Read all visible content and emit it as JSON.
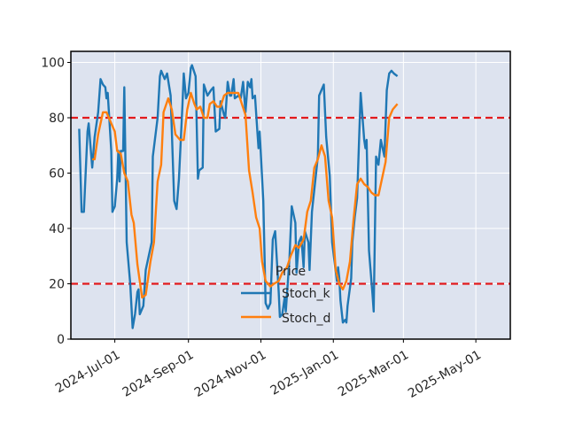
{
  "chart_data": {
    "type": "line",
    "legend": {
      "title": "Price",
      "placement": "lower-center"
    },
    "xlabel": "",
    "ylabel": "",
    "ylim": [
      0,
      104
    ],
    "xlim": [
      "2024-05-25",
      "2025-05-30"
    ],
    "grid": true,
    "background_color": "#dde3ef",
    "xticks": [
      "2024-07-01",
      "2024-09-01",
      "2024-11-01",
      "2025-01-01",
      "2025-03-01",
      "2025-05-01"
    ],
    "xtick_labels": [
      "2024-Jul-01",
      "2024-Sep-01",
      "2024-Nov-01",
      "2025-Jan-01",
      "2025-Mar-01",
      "2025-May-01"
    ],
    "yticks": [
      0,
      20,
      40,
      60,
      80,
      100
    ],
    "ytick_labels": [
      "0",
      "20",
      "40",
      "60",
      "80",
      "100"
    ],
    "reference_lines": [
      {
        "y": 80,
        "color": "#e31a1c",
        "style": "dashed"
      },
      {
        "y": 20,
        "color": "#e31a1c",
        "style": "dashed"
      }
    ],
    "series": [
      {
        "name": "Stoch_k",
        "color": "#1f77b4",
        "points": [
          [
            "2024-06-01",
            76
          ],
          [
            "2024-06-03",
            46
          ],
          [
            "2024-06-05",
            46
          ],
          [
            "2024-06-08",
            75
          ],
          [
            "2024-06-09",
            78
          ],
          [
            "2024-06-12",
            62
          ],
          [
            "2024-06-14",
            73
          ],
          [
            "2024-06-17",
            82
          ],
          [
            "2024-06-19",
            94
          ],
          [
            "2024-06-21",
            92
          ],
          [
            "2024-06-23",
            91
          ],
          [
            "2024-06-24",
            87
          ],
          [
            "2024-06-25",
            89
          ],
          [
            "2024-06-28",
            68
          ],
          [
            "2024-06-29",
            46
          ],
          [
            "2024-07-01",
            48
          ],
          [
            "2024-07-03",
            58
          ],
          [
            "2024-07-04",
            68
          ],
          [
            "2024-07-05",
            57
          ],
          [
            "2024-07-06",
            68
          ],
          [
            "2024-07-08",
            68
          ],
          [
            "2024-07-09",
            91
          ],
          [
            "2024-07-11",
            35
          ],
          [
            "2024-07-14",
            20
          ],
          [
            "2024-07-16",
            4
          ],
          [
            "2024-07-18",
            9
          ],
          [
            "2024-07-20",
            17
          ],
          [
            "2024-07-21",
            18
          ],
          [
            "2024-07-22",
            9
          ],
          [
            "2024-07-25",
            12
          ],
          [
            "2024-07-27",
            25
          ],
          [
            "2024-08-01",
            35
          ],
          [
            "2024-08-02",
            66
          ],
          [
            "2024-08-06",
            80
          ],
          [
            "2024-08-08",
            95
          ],
          [
            "2024-08-09",
            97
          ],
          [
            "2024-08-12",
            94
          ],
          [
            "2024-08-14",
            96
          ],
          [
            "2024-08-17",
            88
          ],
          [
            "2024-08-20",
            50
          ],
          [
            "2024-08-22",
            47
          ],
          [
            "2024-08-24",
            58
          ],
          [
            "2024-08-27",
            85
          ],
          [
            "2024-08-28",
            96
          ],
          [
            "2024-08-30",
            87
          ],
          [
            "2024-09-01",
            89
          ],
          [
            "2024-09-03",
            98
          ],
          [
            "2024-09-04",
            99
          ],
          [
            "2024-09-07",
            95
          ],
          [
            "2024-09-09",
            58
          ],
          [
            "2024-09-10",
            61
          ],
          [
            "2024-09-13",
            62
          ],
          [
            "2024-09-14",
            92
          ],
          [
            "2024-09-17",
            88
          ],
          [
            "2024-09-20",
            90
          ],
          [
            "2024-09-22",
            91
          ],
          [
            "2024-09-24",
            75
          ],
          [
            "2024-09-27",
            76
          ],
          [
            "2024-09-28",
            86
          ],
          [
            "2024-10-01",
            81
          ],
          [
            "2024-10-02",
            80
          ],
          [
            "2024-10-04",
            93
          ],
          [
            "2024-10-06",
            88
          ],
          [
            "2024-10-07",
            88
          ],
          [
            "2024-10-09",
            94
          ],
          [
            "2024-10-10",
            87
          ],
          [
            "2024-10-13",
            88
          ],
          [
            "2024-10-15",
            87
          ],
          [
            "2024-10-17",
            93
          ],
          [
            "2024-10-19",
            82
          ],
          [
            "2024-10-21",
            93
          ],
          [
            "2024-10-23",
            91
          ],
          [
            "2024-10-24",
            94
          ],
          [
            "2024-10-25",
            87
          ],
          [
            "2024-10-27",
            88
          ],
          [
            "2024-10-29",
            75
          ],
          [
            "2024-10-30",
            69
          ],
          [
            "2024-10-31",
            75
          ],
          [
            "2024-11-03",
            50
          ],
          [
            "2024-11-05",
            13
          ],
          [
            "2024-11-07",
            11
          ],
          [
            "2024-11-09",
            13
          ],
          [
            "2024-11-11",
            36
          ],
          [
            "2024-11-13",
            39
          ],
          [
            "2024-11-16",
            17
          ],
          [
            "2024-11-17",
            8
          ],
          [
            "2024-11-19",
            9
          ],
          [
            "2024-11-21",
            15
          ],
          [
            "2024-11-22",
            10
          ],
          [
            "2024-11-25",
            29
          ],
          [
            "2024-11-27",
            48
          ],
          [
            "2024-11-30",
            42
          ],
          [
            "2024-12-01",
            24
          ],
          [
            "2024-12-03",
            35
          ],
          [
            "2024-12-05",
            37
          ],
          [
            "2024-12-07",
            26
          ],
          [
            "2024-12-08",
            39
          ],
          [
            "2024-12-11",
            35
          ],
          [
            "2024-12-12",
            25
          ],
          [
            "2024-12-14",
            46
          ],
          [
            "2024-12-19",
            66
          ],
          [
            "2024-12-20",
            88
          ],
          [
            "2024-12-24",
            92
          ],
          [
            "2024-12-26",
            73
          ],
          [
            "2024-12-29",
            59
          ],
          [
            "2024-12-31",
            35
          ],
          [
            "2025-01-04",
            21
          ],
          [
            "2025-01-05",
            26
          ],
          [
            "2025-01-06",
            22
          ],
          [
            "2025-01-07",
            14
          ],
          [
            "2025-01-09",
            6
          ],
          [
            "2025-01-11",
            7
          ],
          [
            "2025-01-12",
            6
          ],
          [
            "2025-01-13",
            12
          ],
          [
            "2025-01-16",
            22
          ],
          [
            "2025-01-17",
            35
          ],
          [
            "2025-01-19",
            44
          ],
          [
            "2025-01-21",
            51
          ],
          [
            "2025-01-24",
            89
          ],
          [
            "2025-01-27",
            72
          ],
          [
            "2025-01-28",
            69
          ],
          [
            "2025-01-29",
            72
          ],
          [
            "2025-01-31",
            32
          ],
          [
            "2025-02-03",
            16
          ],
          [
            "2025-02-04",
            10
          ],
          [
            "2025-02-06",
            66
          ],
          [
            "2025-02-08",
            63
          ],
          [
            "2025-02-10",
            72
          ],
          [
            "2025-02-13",
            66
          ],
          [
            "2025-02-15",
            90
          ],
          [
            "2025-02-17",
            96
          ],
          [
            "2025-02-19",
            97
          ],
          [
            "2025-02-21",
            96
          ],
          [
            "2025-02-24",
            95
          ]
        ]
      },
      {
        "name": "Stoch_d",
        "color": "#ff7f0e",
        "points": [
          [
            "2024-06-12",
            65
          ],
          [
            "2024-06-14",
            65
          ],
          [
            "2024-06-17",
            74
          ],
          [
            "2024-06-21",
            82
          ],
          [
            "2024-06-24",
            82
          ],
          [
            "2024-06-27",
            79
          ],
          [
            "2024-06-29",
            77
          ],
          [
            "2024-07-01",
            75
          ],
          [
            "2024-07-03",
            68
          ],
          [
            "2024-07-06",
            67
          ],
          [
            "2024-07-09",
            60
          ],
          [
            "2024-07-12",
            57
          ],
          [
            "2024-07-15",
            45
          ],
          [
            "2024-07-17",
            42
          ],
          [
            "2024-07-20",
            27
          ],
          [
            "2024-07-24",
            15
          ],
          [
            "2024-07-27",
            16
          ],
          [
            "2024-07-31",
            28
          ],
          [
            "2024-08-03",
            35
          ],
          [
            "2024-08-06",
            57
          ],
          [
            "2024-08-09",
            63
          ],
          [
            "2024-08-11",
            82
          ],
          [
            "2024-08-15",
            87
          ],
          [
            "2024-08-18",
            83
          ],
          [
            "2024-08-21",
            74
          ],
          [
            "2024-08-25",
            72
          ],
          [
            "2024-08-28",
            72
          ],
          [
            "2024-08-31",
            83
          ],
          [
            "2024-09-03",
            89
          ],
          [
            "2024-09-06",
            85
          ],
          [
            "2024-09-08",
            83
          ],
          [
            "2024-09-11",
            84
          ],
          [
            "2024-09-14",
            80
          ],
          [
            "2024-09-17",
            80
          ],
          [
            "2024-09-19",
            85
          ],
          [
            "2024-09-22",
            86
          ],
          [
            "2024-09-25",
            84
          ],
          [
            "2024-09-28",
            84
          ],
          [
            "2024-10-01",
            88
          ],
          [
            "2024-10-04",
            89
          ],
          [
            "2024-10-07",
            89
          ],
          [
            "2024-10-10",
            89
          ],
          [
            "2024-10-13",
            89
          ],
          [
            "2024-10-16",
            85
          ],
          [
            "2024-10-19",
            81
          ],
          [
            "2024-10-22",
            61
          ],
          [
            "2024-10-25",
            53
          ],
          [
            "2024-10-28",
            44
          ],
          [
            "2024-10-31",
            40
          ],
          [
            "2024-11-02",
            28
          ],
          [
            "2024-11-05",
            21
          ],
          [
            "2024-11-09",
            19
          ],
          [
            "2024-11-12",
            20
          ],
          [
            "2024-11-16",
            21
          ],
          [
            "2024-11-19",
            24
          ],
          [
            "2024-11-23",
            26
          ],
          [
            "2024-11-26",
            30
          ],
          [
            "2024-11-30",
            34
          ],
          [
            "2024-12-03",
            33
          ],
          [
            "2024-12-07",
            36
          ],
          [
            "2024-12-10",
            46
          ],
          [
            "2024-12-13",
            50
          ],
          [
            "2024-12-16",
            62
          ],
          [
            "2024-12-19",
            65
          ],
          [
            "2024-12-22",
            70
          ],
          [
            "2024-12-25",
            66
          ],
          [
            "2024-12-28",
            50
          ],
          [
            "2024-12-31",
            44
          ],
          [
            "2025-01-03",
            25
          ],
          [
            "2025-01-06",
            20
          ],
          [
            "2025-01-09",
            18
          ],
          [
            "2025-01-12",
            21
          ],
          [
            "2025-01-15",
            28
          ],
          [
            "2025-01-18",
            43
          ],
          [
            "2025-01-21",
            56
          ],
          [
            "2025-01-24",
            58
          ],
          [
            "2025-01-27",
            56
          ],
          [
            "2025-01-30",
            55
          ],
          [
            "2025-02-02",
            53
          ],
          [
            "2025-02-05",
            52
          ],
          [
            "2025-02-08",
            52
          ],
          [
            "2025-02-11",
            58
          ],
          [
            "2025-02-14",
            64
          ],
          [
            "2025-02-17",
            80
          ],
          [
            "2025-02-20",
            83
          ],
          [
            "2025-02-24",
            85
          ]
        ]
      }
    ]
  }
}
